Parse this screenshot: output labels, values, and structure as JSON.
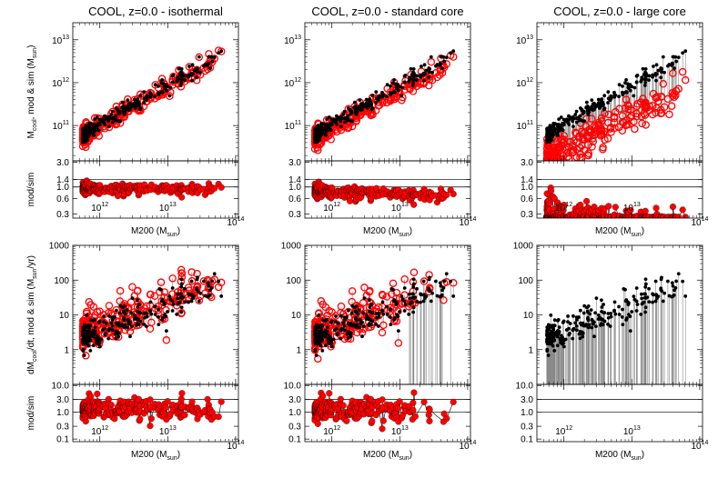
{
  "chart_data": {
    "type": "scatter",
    "layout": "2x3 grid, each panel with main plot and ratio subplot",
    "columns": [
      {
        "title": "COOL, z=0.0 - isothermal",
        "mode": "isothermal"
      },
      {
        "title": "COOL, z=0.0 - standard core",
        "mode": "standard"
      },
      {
        "title": "COOL, z=0.0 - large core",
        "mode": "large"
      }
    ],
    "x_axis": {
      "label": "M200 (M",
      "label_sub": "sun",
      "label_end": ")",
      "scale": "log",
      "range": [
        400000000000.0,
        110000000000000.0
      ],
      "ticks": [
        {
          "value": 1000000000000.0,
          "base": "10",
          "exp": "12"
        },
        {
          "value": 10000000000000.0,
          "base": "10",
          "exp": "13"
        },
        {
          "value": 100000000000000.0,
          "base": "10",
          "exp": "14"
        }
      ]
    },
    "rows": [
      {
        "quantity": "M_cool",
        "ylabel": "M",
        "ylabel_sub": "cool",
        "ylabel_rest": ", mod & sim (M",
        "ylabel_sub2": "sun",
        "ylabel_end": ")",
        "yscale": "log",
        "yrange": [
          15000000000.0,
          25000000000000.0
        ],
        "yticks": [
          {
            "value": 100000000000.0,
            "base": "10",
            "exp": "11"
          },
          {
            "value": 1000000000000.0,
            "base": "10",
            "exp": "12"
          },
          {
            "value": 10000000000000.0,
            "base": "10",
            "exp": "13"
          }
        ],
        "ratio_label": "mod/sim",
        "ratio_range": [
          0.25,
          3.2
        ],
        "ratio_ticks": [
          "3.0",
          "1.4",
          "1.0",
          "0.6",
          "0.3"
        ],
        "ratio_ref_lines": [
          1.0,
          1.4
        ]
      },
      {
        "quantity": "dM_cool/dt",
        "ylabel": "dM",
        "ylabel_sub": "cool",
        "ylabel_rest": "/dt, mod & sim (M",
        "ylabel_sub2": "sun",
        "ylabel_end": "/yr)",
        "yscale": "log",
        "yrange": [
          0.1,
          1000
        ],
        "yticks": [
          {
            "value": 1,
            "label": "1"
          },
          {
            "value": 10,
            "label": "10"
          },
          {
            "value": 100,
            "label": "100"
          },
          {
            "value": 1000,
            "label": "1000"
          }
        ],
        "ratio_label": "mod/sim",
        "ratio_range": [
          0.08,
          11
        ],
        "ratio_ticks": [
          "10.0",
          "3.0",
          "1.0",
          "0.3",
          "0.1"
        ],
        "ratio_ref_lines": [
          1.0,
          3.0
        ]
      }
    ],
    "legend": {
      "items": [
        {
          "name": "",
          "marker": "filled black dot"
        },
        {
          "name": "",
          "marker": "open red circle"
        }
      ]
    },
    "colors": {
      "sim": "#000000",
      "model": "#ff0000",
      "connector": "#888888",
      "ratio_fill": "#ff0000"
    },
    "grid": false
  }
}
